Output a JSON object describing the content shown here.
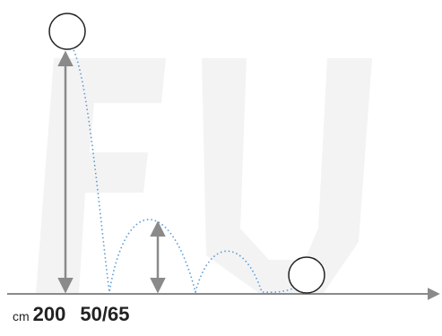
{
  "diagram": {
    "caption": {
      "unit": "cm",
      "drop_height": "200",
      "rebound_height": "50/65"
    },
    "colors": {
      "axis": "#8a8a8a",
      "arrow": "#8a8a8a",
      "trajectory": "#5a9bd5",
      "ball_stroke": "#222222",
      "watermark": "#f2f2f2",
      "text": "#222222"
    },
    "icons": {
      "ball": "ball-circle",
      "ground": "ground-line-arrow",
      "height_marker": "double-headed-arrow",
      "trajectory": "dotted-bounce-path"
    }
  }
}
